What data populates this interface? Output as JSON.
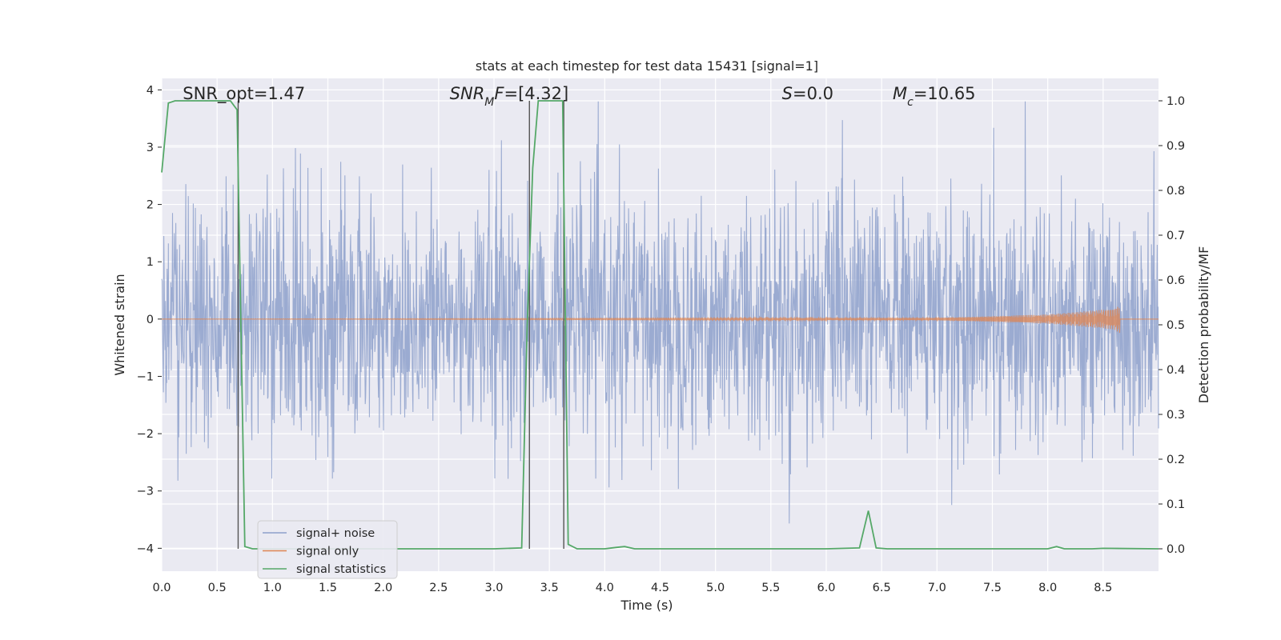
{
  "chart_data": {
    "type": "line",
    "title": "stats at each timestep for test data 15431 [signal=1]",
    "xlabel": "Time (s)",
    "ylabel_left": "Whitened strain",
    "ylabel_right": "Detection probability/MF",
    "xlim": [
      0.0,
      9.0
    ],
    "ylim_left": [
      -4.4,
      4.2
    ],
    "ylim_right": [
      -0.05,
      1.05
    ],
    "x_ticks": [
      "0.0",
      "0.5",
      "1.0",
      "1.5",
      "2.0",
      "2.5",
      "3.0",
      "3.5",
      "4.0",
      "4.5",
      "5.0",
      "5.5",
      "6.0",
      "6.5",
      "7.0",
      "7.5",
      "8.0",
      "8.5"
    ],
    "y_ticks_left": [
      "4",
      "3",
      "2",
      "1",
      "0",
      "−1",
      "−2",
      "−3",
      "−4"
    ],
    "y_ticks_right": [
      "1.0",
      "0.9",
      "0.8",
      "0.7",
      "0.6",
      "0.5",
      "0.4",
      "0.3",
      "0.2",
      "0.1",
      "0.0"
    ],
    "grid": true,
    "legend_position": "lower-left",
    "colors": {
      "noise": "#8da0cb",
      "signal": "#dd8452",
      "stats": "#55a868",
      "vline": "#555555",
      "background": "#eaeaf2",
      "grid": "#ffffff"
    },
    "series": [
      {
        "name": "signal+ noise",
        "axis": "left",
        "description_values": "whitened strain noise, amplitude roughly within -3.6 to 3.8"
      },
      {
        "name": "signal only",
        "axis": "left",
        "x_envelope": [
          0.0,
          7.0,
          8.0,
          8.6,
          8.65
        ],
        "amplitude": [
          0.0,
          0.02,
          0.08,
          0.18,
          0.25
        ]
      },
      {
        "name": "signal statistics",
        "axis": "right",
        "x": [
          0.0,
          0.06,
          0.12,
          0.3,
          0.5,
          0.62,
          0.68,
          0.75,
          0.82,
          1.0,
          1.5,
          2.0,
          2.5,
          3.0,
          3.25,
          3.3,
          3.35,
          3.4,
          3.45,
          3.5,
          3.55,
          3.62,
          3.67,
          3.75,
          3.85,
          4.0,
          4.1,
          4.18,
          4.27,
          4.5,
          5.0,
          5.5,
          6.0,
          6.3,
          6.38,
          6.45,
          6.55,
          7.0,
          7.5,
          8.0,
          8.08,
          8.15,
          8.4,
          8.5,
          9.0
        ],
        "y": [
          0.84,
          0.995,
          1.0,
          1.0,
          1.0,
          1.0,
          0.98,
          0.005,
          0.0,
          0.0,
          0.0,
          0.0,
          0.0,
          0.0,
          0.002,
          0.5,
          0.85,
          1.0,
          1.0,
          1.0,
          1.0,
          1.0,
          0.01,
          0.0,
          0.0,
          0.0,
          0.003,
          0.005,
          0.0,
          0.0,
          0.0,
          0.0,
          0.0,
          0.002,
          0.085,
          0.002,
          0.0,
          0.0,
          0.0,
          0.0,
          0.005,
          0.0,
          0.0,
          0.001,
          0.0
        ]
      }
    ],
    "vlines_x": [
      0.69,
      3.32,
      3.63
    ],
    "annotations": [
      {
        "parts": [
          {
            "text": "SNR_opt=1.47",
            "italic": false
          }
        ],
        "x": 0.19
      },
      {
        "parts": [
          {
            "text": "SNR",
            "italic": true
          },
          {
            "text": "M",
            "italic": true,
            "sub": true
          },
          {
            "text": "F",
            "italic": true
          },
          {
            "text": "=[4.32]",
            "italic": false
          }
        ],
        "x": 2.6
      },
      {
        "parts": [
          {
            "text": "S",
            "italic": true
          },
          {
            "text": "=0.0",
            "italic": false
          }
        ],
        "x": 5.6
      },
      {
        "parts": [
          {
            "text": "M",
            "italic": true
          },
          {
            "text": "c",
            "italic": true,
            "sub": true
          },
          {
            "text": "=10.65",
            "italic": false
          }
        ],
        "x": 6.6
      }
    ]
  }
}
